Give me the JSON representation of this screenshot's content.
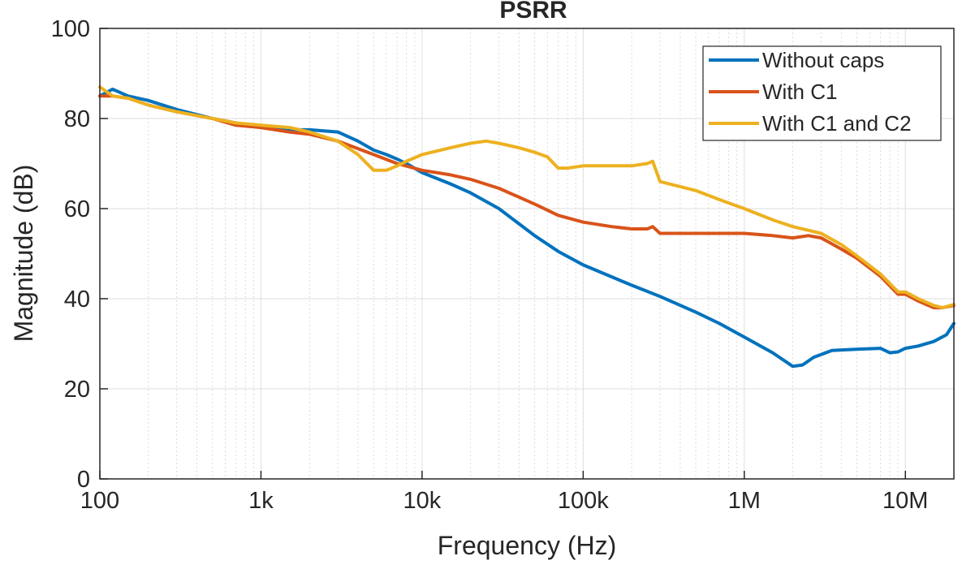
{
  "chart_data": {
    "type": "line",
    "title": "PSRR",
    "xlabel": "Frequency (Hz)",
    "ylabel": "Magnitude (dB)",
    "xscale": "log",
    "xlim": [
      100,
      20000000
    ],
    "ylim": [
      0,
      100
    ],
    "grid": true,
    "legend_position": "top-right",
    "x_ticks": [
      {
        "value": 100,
        "label": "100"
      },
      {
        "value": 1000,
        "label": "1k"
      },
      {
        "value": 10000,
        "label": "10k"
      },
      {
        "value": 100000,
        "label": "100k"
      },
      {
        "value": 1000000,
        "label": "1M"
      },
      {
        "value": 10000000,
        "label": "10M"
      }
    ],
    "y_ticks": [
      {
        "value": 0,
        "label": "0"
      },
      {
        "value": 20,
        "label": "20"
      },
      {
        "value": 40,
        "label": "40"
      },
      {
        "value": 60,
        "label": "60"
      },
      {
        "value": 80,
        "label": "80"
      },
      {
        "value": 100,
        "label": "100"
      }
    ],
    "series": [
      {
        "name": "Without caps",
        "color": "#0072BD",
        "x": [
          100,
          120,
          150,
          200,
          300,
          500,
          700,
          1000,
          1500,
          2000,
          3000,
          4000,
          5000,
          6000,
          7000,
          8000,
          10000,
          15000,
          20000,
          30000,
          50000,
          70000,
          100000,
          200000,
          300000,
          500000,
          700000,
          1000000,
          1500000,
          2000000,
          2300000,
          2700000,
          3500000,
          5000000,
          7000000,
          8000000,
          9000000,
          10000000,
          12000000,
          15000000,
          18000000,
          20000000
        ],
        "y": [
          85,
          86.5,
          85,
          84,
          82,
          80,
          79,
          78,
          77.5,
          77.5,
          77,
          75,
          73,
          72,
          71,
          70,
          68,
          65.5,
          63.5,
          60,
          54,
          50.5,
          47.5,
          43,
          40.5,
          37,
          34.5,
          31.5,
          28,
          25,
          25.3,
          27,
          28.5,
          28.8,
          29,
          28,
          28.2,
          29,
          29.5,
          30.5,
          32,
          34.5
        ]
      },
      {
        "name": "With C1",
        "color": "#D95319",
        "x": [
          100,
          120,
          150,
          200,
          300,
          500,
          700,
          1000,
          1500,
          2000,
          3000,
          5000,
          7000,
          10000,
          15000,
          20000,
          30000,
          50000,
          70000,
          100000,
          150000,
          200000,
          250000,
          270000,
          300000,
          500000,
          700000,
          1000000,
          1500000,
          2000000,
          2500000,
          3000000,
          4000000,
          5000000,
          7000000,
          9000000,
          10000000,
          12000000,
          15000000,
          17000000,
          20000000
        ],
        "y": [
          85,
          85,
          84.5,
          83,
          81.5,
          80,
          78.5,
          78,
          77,
          76.5,
          75,
          72,
          70,
          68.5,
          67.5,
          66.5,
          64.5,
          61,
          58.5,
          57,
          56,
          55.5,
          55.5,
          56,
          54.5,
          54.5,
          54.5,
          54.5,
          54,
          53.5,
          54,
          53.5,
          51,
          49,
          45,
          41,
          41,
          39.5,
          38,
          38,
          38.5
        ]
      },
      {
        "name": "With C1 and C2",
        "color": "#EDB120",
        "x": [
          100,
          120,
          150,
          200,
          300,
          500,
          700,
          1000,
          1500,
          2000,
          3000,
          4000,
          5000,
          6000,
          7000,
          8000,
          10000,
          15000,
          20000,
          25000,
          30000,
          40000,
          50000,
          60000,
          70000,
          80000,
          100000,
          150000,
          200000,
          250000,
          270000,
          300000,
          500000,
          700000,
          1000000,
          1500000,
          2000000,
          3000000,
          4000000,
          5000000,
          7000000,
          9000000,
          10000000,
          12000000,
          15000000,
          17000000,
          20000000
        ],
        "y": [
          87,
          85,
          84.5,
          83,
          81.5,
          80,
          79,
          78.5,
          78,
          77,
          75,
          72,
          68.5,
          68.5,
          69.5,
          70.5,
          72,
          73.5,
          74.5,
          75,
          74.5,
          73.5,
          72.5,
          71.5,
          69,
          69,
          69.5,
          69.5,
          69.5,
          70,
          70.5,
          66,
          64,
          62,
          60,
          57.5,
          56,
          54.5,
          52,
          49.5,
          45.5,
          41.5,
          41.5,
          40,
          38.5,
          38,
          38.7
        ]
      }
    ]
  }
}
